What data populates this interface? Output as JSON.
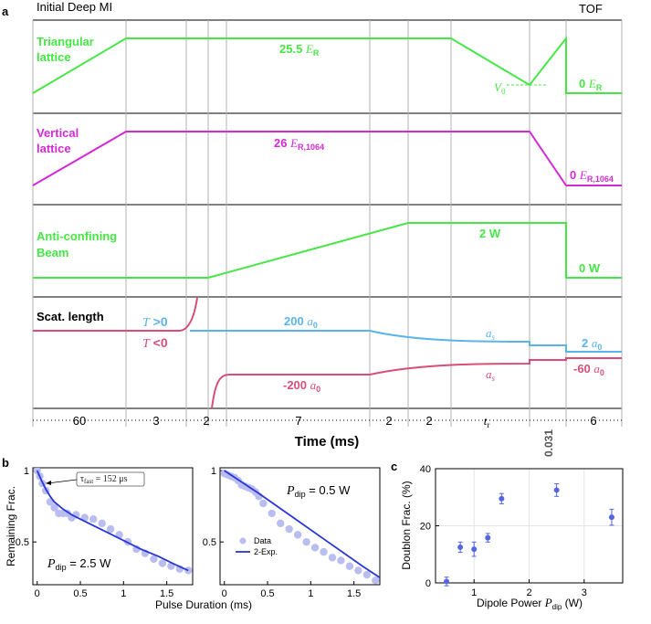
{
  "panel_labels": [
    "a",
    "b",
    "c"
  ],
  "colors": {
    "green": "#46e646",
    "magenta": "#d42ad4",
    "blue": "#5ab4ea",
    "red": "#d94e78",
    "grid": "#b0b0b0",
    "data_point": "#b9bdf0",
    "fit_line": "#2a36d6",
    "c_point": "#5564e0"
  },
  "header": {
    "initial": "Initial Deep MI",
    "tof": "TOF"
  },
  "rows": {
    "triangular": {
      "label_line1": "Triangular",
      "label_line2": "lattice",
      "depth_num": "25.5",
      "depth_unit": "E",
      "depth_sub": "R",
      "v0": "V",
      "v0_sub": "0",
      "final_num": "0",
      "final_unit": "E",
      "final_sub": "R"
    },
    "vertical": {
      "label_line1": "Vertical",
      "label_line2": "lattice",
      "depth_num": "26",
      "depth_unit": "E",
      "depth_sub": "R,1064",
      "final_num": "0",
      "final_unit": "E",
      "final_sub": "R,1064"
    },
    "anti": {
      "label_line1": "Anti-confining",
      "label_line2": "Beam",
      "power": "2 W",
      "final": "0 W"
    },
    "scat": {
      "label": "Scat. length",
      "tpos_T": "T",
      "tpos_rest": " >0",
      "tneg_T": "T",
      "tneg_rest": " <0",
      "pos_val": "200",
      "neg_val": "-200",
      "unit": "a",
      "unit_sub": "0",
      "as": "a",
      "as_sub": "s",
      "final_pos": "2",
      "final_neg": "-60"
    }
  },
  "time_axis": {
    "durations": [
      "60",
      "3",
      "2",
      "7",
      "2",
      "2",
      "t",
      "0.031",
      "6"
    ],
    "tr_sub": "r",
    "label": "Time (ms)"
  },
  "chart_data": [
    {
      "type": "scatter",
      "panel": "b-left",
      "ylabel": "Remaining Frac.",
      "xlabel": "Pulse Duration (ms)",
      "xlim": [
        -0.05,
        1.8
      ],
      "ylim": [
        0.2,
        1.02
      ],
      "xticks": [
        "0",
        "0.5",
        "1",
        "1.5"
      ],
      "yticks": [
        "0.5",
        "1"
      ],
      "annotation": {
        "text": "τ",
        "sub": "fast",
        "value": " = 152 μs"
      },
      "param_label": {
        "P": "P",
        "sub": "dip",
        "value": " = 2.5 W"
      },
      "series": [
        {
          "name": "Data",
          "x": [
            0.0,
            0.03,
            0.06,
            0.1,
            0.15,
            0.2,
            0.25,
            0.3,
            0.35,
            0.4,
            0.45,
            0.55,
            0.65,
            0.75,
            0.85,
            0.95,
            1.05,
            1.15,
            1.25,
            1.35,
            1.45,
            1.55,
            1.65,
            1.75
          ],
          "y": [
            1.0,
            0.96,
            0.91,
            0.86,
            0.78,
            0.74,
            0.7,
            0.7,
            0.7,
            0.67,
            0.69,
            0.67,
            0.66,
            0.63,
            0.59,
            0.55,
            0.5,
            0.45,
            0.42,
            0.38,
            0.35,
            0.33,
            0.31,
            0.3
          ]
        },
        {
          "name": "2-Exp.",
          "x": [
            0.0,
            0.05,
            0.1,
            0.15,
            0.2,
            0.3,
            0.4,
            0.5,
            0.6,
            0.8,
            1.0,
            1.2,
            1.4,
            1.6,
            1.75
          ],
          "y": [
            1.0,
            0.93,
            0.87,
            0.82,
            0.78,
            0.73,
            0.69,
            0.66,
            0.63,
            0.57,
            0.51,
            0.45,
            0.4,
            0.34,
            0.3
          ]
        }
      ]
    },
    {
      "type": "scatter",
      "panel": "b-right",
      "xlabel": "Pulse Duration (ms)",
      "xlim": [
        -0.05,
        1.8
      ],
      "ylim": [
        0.2,
        1.02
      ],
      "xticks": [
        "0",
        "0.5",
        "1",
        "1.5"
      ],
      "yticks": [
        "0.5",
        "1"
      ],
      "param_label": {
        "P": "P",
        "sub": "dip",
        "value": " = 0.5 W"
      },
      "legend": {
        "data": "Data",
        "fit": "2-Exp."
      },
      "series": [
        {
          "name": "Data",
          "x": [
            0.0,
            0.04,
            0.08,
            0.12,
            0.16,
            0.2,
            0.24,
            0.28,
            0.32,
            0.36,
            0.4,
            0.45,
            0.55,
            0.65,
            0.75,
            0.85,
            0.95,
            1.05,
            1.15,
            1.25,
            1.35,
            1.45,
            1.55,
            1.65,
            1.75
          ],
          "y": [
            0.98,
            0.97,
            0.96,
            0.95,
            0.93,
            0.9,
            0.89,
            0.88,
            0.87,
            0.85,
            0.82,
            0.77,
            0.7,
            0.63,
            0.59,
            0.55,
            0.5,
            0.46,
            0.43,
            0.39,
            0.37,
            0.33,
            0.3,
            0.27,
            0.23
          ]
        },
        {
          "name": "2-Exp.",
          "x": [
            0.0,
            0.4,
            0.8,
            1.2,
            1.6,
            1.8
          ],
          "y": [
            1.0,
            0.84,
            0.67,
            0.5,
            0.33,
            0.25
          ]
        }
      ]
    },
    {
      "type": "scatter",
      "panel": "c",
      "ylabel": "Doublon Frac. (%)",
      "xlabel_main": "Dipole Power ",
      "xlabel_P": "P",
      "xlabel_sub": "dip",
      "xlabel_unit": " (W)",
      "xlim": [
        0.3,
        3.7
      ],
      "ylim": [
        0,
        40
      ],
      "xticks": [
        "1",
        "2",
        "3"
      ],
      "yticks": [
        "0",
        "20",
        "40"
      ],
      "grid": true,
      "series": [
        {
          "name": "Doublon",
          "x": [
            0.5,
            0.75,
            1.0,
            1.25,
            1.5,
            2.5,
            3.5
          ],
          "y": [
            0.5,
            12.5,
            11.8,
            15.8,
            29.5,
            32.5,
            23.0
          ],
          "err": [
            1.5,
            1.8,
            2.5,
            1.5,
            1.8,
            2.2,
            2.8
          ]
        }
      ]
    }
  ]
}
